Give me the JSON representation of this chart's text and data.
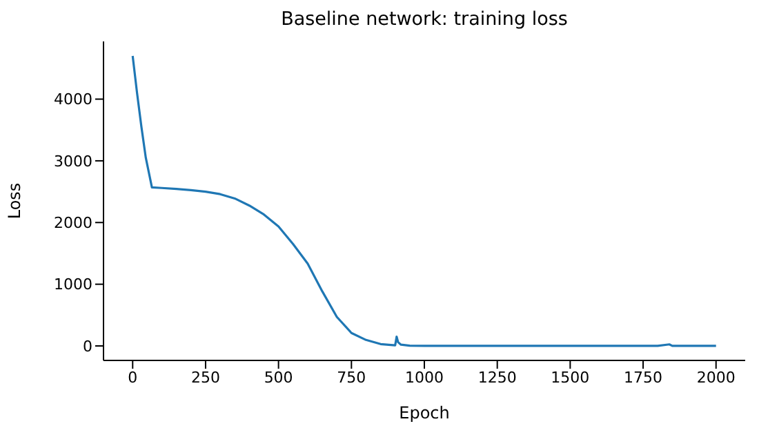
{
  "chart_data": {
    "type": "line",
    "title": "Baseline network: training loss",
    "xlabel": "Epoch",
    "ylabel": "Loss",
    "x": [
      0,
      15,
      30,
      45,
      66,
      100,
      150,
      200,
      250,
      300,
      350,
      400,
      450,
      500,
      550,
      600,
      650,
      700,
      750,
      800,
      850,
      900,
      905,
      910,
      920,
      950,
      1000,
      1200,
      1500,
      1800,
      1840,
      1850,
      2000
    ],
    "series": [
      {
        "color": "#1f77b4",
        "values": [
          4700,
          4100,
          3550,
          3050,
          2570,
          2560,
          2545,
          2525,
          2500,
          2460,
          2390,
          2275,
          2130,
          1937,
          1650,
          1335,
          885,
          470,
          210,
          97,
          30,
          10,
          150,
          60,
          20,
          5,
          2,
          1,
          1,
          1,
          25,
          1,
          1
        ]
      }
    ],
    "xlim": [
      -100,
      2100
    ],
    "xticks": [
      0,
      250,
      500,
      750,
      1000,
      1250,
      1500,
      1750,
      2000
    ],
    "ylim": [
      -235,
      4935
    ],
    "yticks": [
      0,
      1000,
      2000,
      3000,
      4000
    ],
    "grid": false,
    "legend": false,
    "marker": "none",
    "line_style": "solid"
  }
}
